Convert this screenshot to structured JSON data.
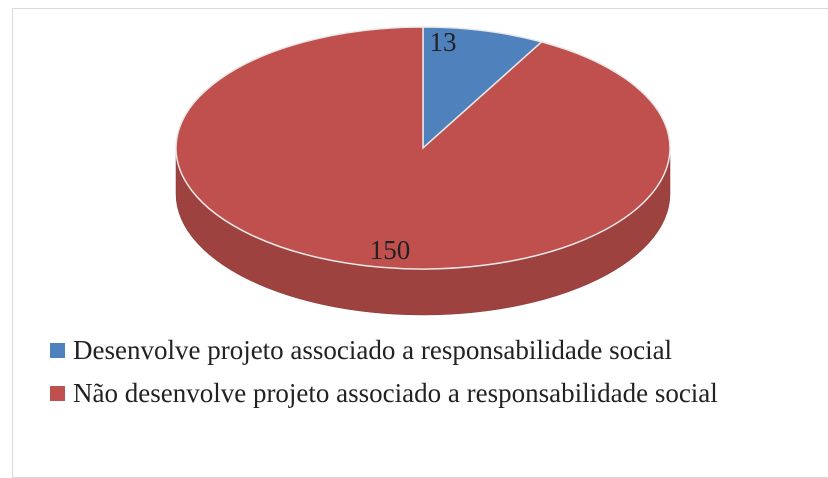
{
  "chart_data": {
    "type": "pie",
    "categories": [
      "Desenvolve projeto associado a responsabilidade social",
      "Não desenvolve projeto associado a responsabilidade social"
    ],
    "values": [
      13,
      150
    ],
    "colors": [
      "#4f81bd",
      "#c0504d"
    ]
  }
}
